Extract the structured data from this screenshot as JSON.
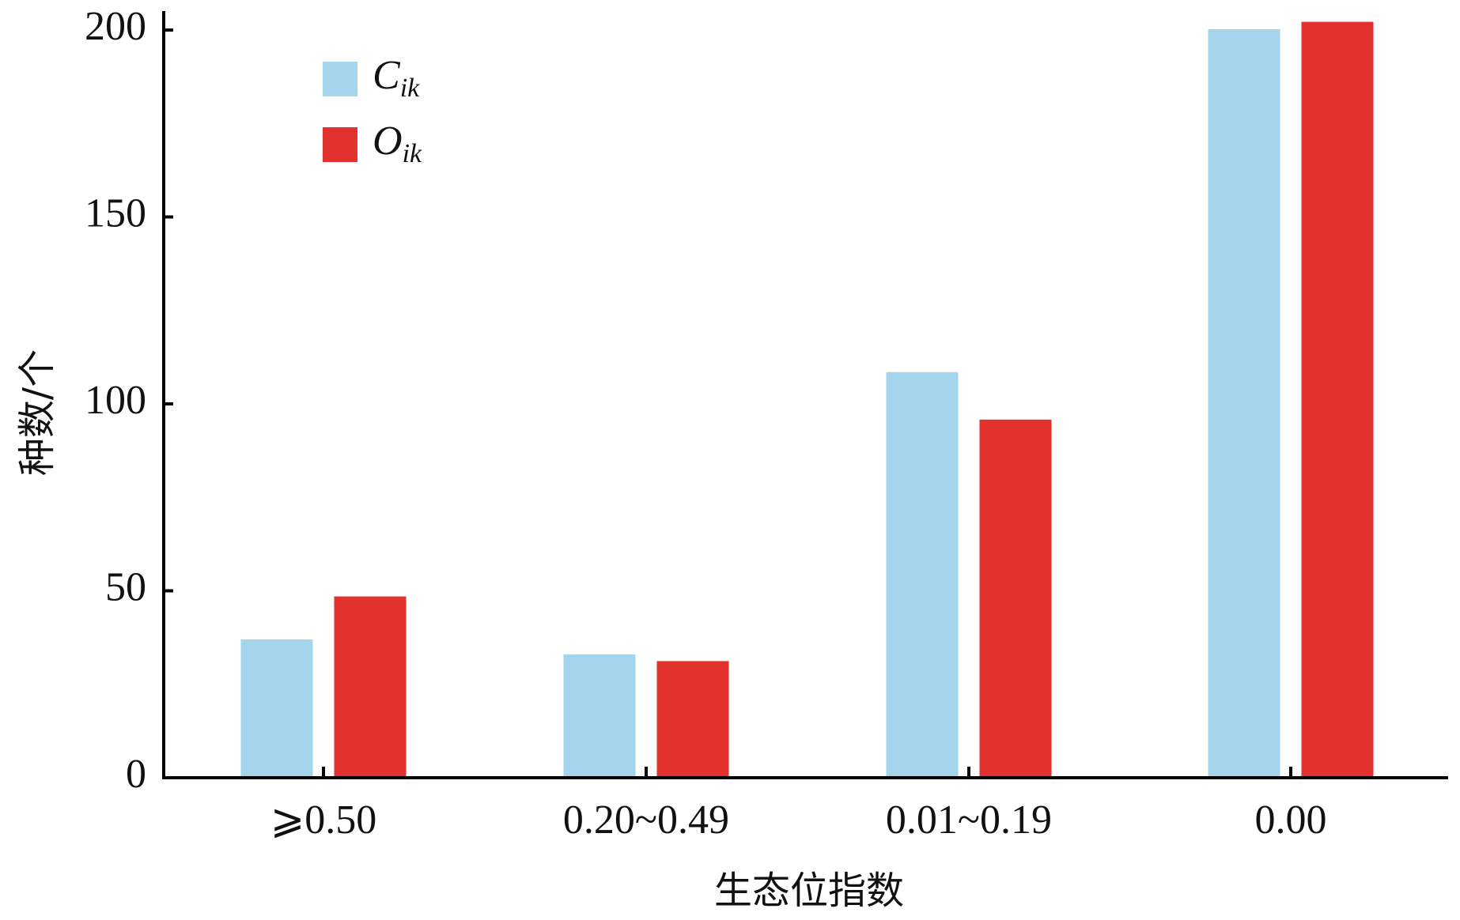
{
  "chart_data": {
    "type": "bar",
    "x_label": "生态位指数",
    "y_label": "种数/个",
    "categories": [
      "⩾0.50",
      "0.20~0.49",
      "0.01~0.19",
      "0.00"
    ],
    "series": [
      {
        "name": "Cik",
        "color": "#a4d5ec",
        "values": [
          37,
          33,
          108.5,
          200.2
        ]
      },
      {
        "name": "Oik",
        "color": "#e3322d",
        "values": [
          48.5,
          31.2,
          95.8,
          202.2
        ]
      }
    ],
    "ylim": [
      0,
      200
    ],
    "yticks": [
      0,
      50,
      100,
      150,
      200
    ],
    "legend": "upper left"
  }
}
